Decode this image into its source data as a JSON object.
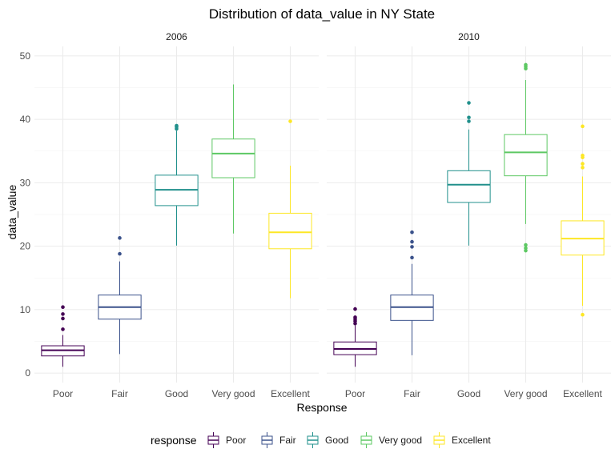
{
  "chart_data": {
    "type": "box",
    "title": "Distribution of data_value in NY State",
    "xlabel": "Response",
    "ylabel": "data_value",
    "ylim": [
      -1.5,
      51.5
    ],
    "yticks": [
      0,
      10,
      20,
      30,
      40,
      50
    ],
    "categories": [
      "Poor",
      "Fair",
      "Good",
      "Very good",
      "Excellent"
    ],
    "grid": true,
    "legend": {
      "title": "response",
      "position": "bottom"
    },
    "colors": {
      "Poor": "#440154",
      "Fair": "#3b528b",
      "Good": "#21908c",
      "Very good": "#5dc863",
      "Excellent": "#fde725"
    },
    "panels": [
      {
        "label": "2006",
        "boxes": [
          {
            "category": "Poor",
            "whisker_low": 1.0,
            "q1": 2.7,
            "median": 3.6,
            "q3": 4.3,
            "whisker_high": 6.0,
            "outliers": [
              6.9,
              8.6,
              9.3,
              10.4
            ]
          },
          {
            "category": "Fair",
            "whisker_low": 3.0,
            "q1": 8.5,
            "median": 10.4,
            "q3": 12.3,
            "whisker_high": 17.6,
            "outliers": [
              18.8,
              21.3
            ]
          },
          {
            "category": "Good",
            "whisker_low": 20.1,
            "q1": 26.4,
            "median": 28.9,
            "q3": 31.2,
            "whisker_high": 38.2,
            "outliers": [
              38.5,
              38.8,
              39.0
            ]
          },
          {
            "category": "Very good",
            "whisker_low": 22.0,
            "q1": 30.8,
            "median": 34.6,
            "q3": 36.9,
            "whisker_high": 45.5,
            "outliers": []
          },
          {
            "category": "Excellent",
            "whisker_low": 11.8,
            "q1": 19.6,
            "median": 22.2,
            "q3": 25.2,
            "whisker_high": 32.7,
            "outliers": [
              39.7
            ]
          }
        ]
      },
      {
        "label": "2010",
        "boxes": [
          {
            "category": "Poor",
            "whisker_low": 1.0,
            "q1": 2.9,
            "median": 3.8,
            "q3": 4.9,
            "whisker_high": 7.5,
            "outliers": [
              7.8,
              8.2,
              8.5,
              8.8,
              10.1
            ]
          },
          {
            "category": "Fair",
            "whisker_low": 2.8,
            "q1": 8.3,
            "median": 10.4,
            "q3": 12.3,
            "whisker_high": 17.2,
            "outliers": [
              18.2,
              19.9,
              20.7,
              22.2
            ]
          },
          {
            "category": "Good",
            "whisker_low": 20.1,
            "q1": 26.9,
            "median": 29.7,
            "q3": 31.9,
            "whisker_high": 38.4,
            "outliers": [
              39.7,
              40.3,
              42.6
            ]
          },
          {
            "category": "Very good",
            "whisker_low": 23.5,
            "q1": 31.1,
            "median": 34.8,
            "q3": 37.6,
            "whisker_high": 46.2,
            "outliers": [
              19.3,
              19.7,
              20.2,
              48.0,
              48.3,
              48.6
            ]
          },
          {
            "category": "Excellent",
            "whisker_low": 10.6,
            "q1": 18.6,
            "median": 21.2,
            "q3": 24.0,
            "whisker_high": 31.0,
            "outliers": [
              9.2,
              32.4,
              33.0,
              34.0,
              34.3,
              38.9
            ]
          }
        ]
      }
    ]
  }
}
